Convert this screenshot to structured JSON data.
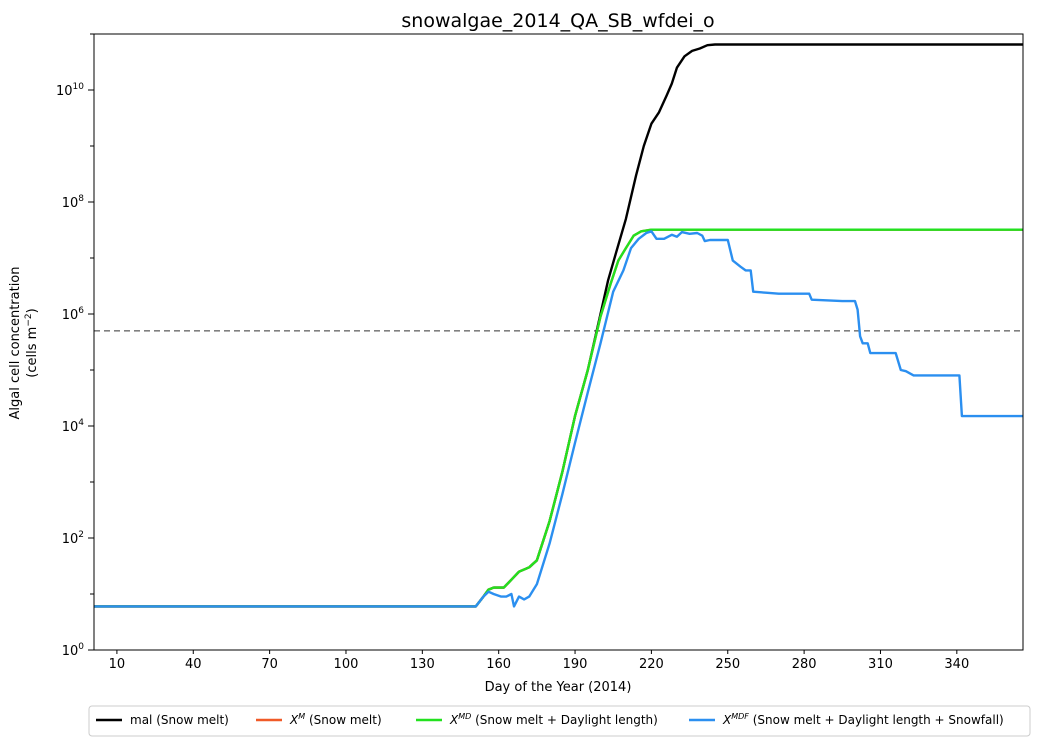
{
  "chart_data": {
    "type": "line",
    "title": "snowalgae_2014_QA_SB_wfdei_o",
    "xlabel": "Day of the Year (2014)",
    "ylabel_line1": "Algal cell concentration",
    "ylabel_line2_prefix": "(cells m",
    "ylabel_line2_sup": "−2",
    "ylabel_line2_suffix": ")",
    "yscale": "log",
    "xlim": [
      1,
      366
    ],
    "ylim": [
      1,
      100000000000
    ],
    "xticks": [
      10,
      40,
      70,
      100,
      130,
      160,
      190,
      220,
      250,
      280,
      310,
      340
    ],
    "yticks": [
      {
        "value": 1,
        "base": "10",
        "exp": "0"
      },
      {
        "value": 100,
        "base": "10",
        "exp": "2"
      },
      {
        "value": 10000,
        "base": "10",
        "exp": "4"
      },
      {
        "value": 1000000,
        "base": "10",
        "exp": "6"
      },
      {
        "value": 100000000,
        "base": "10",
        "exp": "8"
      },
      {
        "value": 10000000000,
        "base": "10",
        "exp": "10"
      }
    ],
    "grid": false,
    "legend_position": "bottom-outside",
    "threshold": {
      "y": 500000,
      "color": "#808080",
      "style": "dashed"
    },
    "series": [
      {
        "name": "mal (Snow melt)",
        "color": "#000000",
        "points": [
          [
            1,
            6
          ],
          [
            151,
            6
          ],
          [
            154,
            9
          ],
          [
            156,
            12
          ],
          [
            158,
            13
          ],
          [
            162,
            13
          ],
          [
            165,
            18
          ],
          [
            168,
            25
          ],
          [
            172,
            30
          ],
          [
            175,
            40
          ],
          [
            180,
            200
          ],
          [
            185,
            1500
          ],
          [
            190,
            15000
          ],
          [
            195,
            100000
          ],
          [
            200,
            1000000
          ],
          [
            203,
            4000000
          ],
          [
            206,
            12000000
          ],
          [
            210,
            50000000
          ],
          [
            214,
            300000000
          ],
          [
            217,
            1000000000
          ],
          [
            220,
            2500000000
          ],
          [
            223,
            4000000000
          ],
          [
            226,
            8000000000
          ],
          [
            228,
            13000000000
          ],
          [
            230,
            25000000000
          ],
          [
            233,
            40000000000
          ],
          [
            236,
            50000000000
          ],
          [
            239,
            55000000000
          ],
          [
            242,
            63000000000
          ],
          [
            245,
            65000000000
          ],
          [
            366,
            65000000000
          ]
        ]
      },
      {
        "name": "X^M (Snow melt)",
        "legend_main": "X",
        "legend_sup": "M",
        "legend_suffix": " (Snow melt)",
        "color": "#f05a28",
        "points": [
          [
            1,
            6
          ],
          [
            151,
            6
          ],
          [
            154,
            9
          ],
          [
            156,
            12
          ],
          [
            158,
            13
          ],
          [
            162,
            13
          ],
          [
            165,
            18
          ],
          [
            168,
            25
          ],
          [
            172,
            30
          ],
          [
            175,
            40
          ],
          [
            180,
            200
          ],
          [
            185,
            1500
          ],
          [
            190,
            15000
          ],
          [
            195,
            100000
          ],
          [
            200,
            900000
          ],
          [
            204,
            3500000
          ],
          [
            207,
            9000000
          ],
          [
            210,
            15000000
          ],
          [
            213,
            25000000
          ],
          [
            216,
            30000000
          ],
          [
            220,
            32000000
          ],
          [
            366,
            32000000
          ]
        ]
      },
      {
        "name": "X^MD (Snow melt + Daylight length)",
        "legend_main": "X",
        "legend_sup": "MD",
        "legend_suffix": " (Snow melt + Daylight length)",
        "color": "#22e11f",
        "points": [
          [
            1,
            6
          ],
          [
            151,
            6
          ],
          [
            154,
            9
          ],
          [
            156,
            12
          ],
          [
            158,
            13
          ],
          [
            162,
            13
          ],
          [
            165,
            18
          ],
          [
            168,
            25
          ],
          [
            172,
            30
          ],
          [
            175,
            40
          ],
          [
            180,
            200
          ],
          [
            185,
            1500
          ],
          [
            190,
            15000
          ],
          [
            195,
            100000
          ],
          [
            200,
            900000
          ],
          [
            204,
            3500000
          ],
          [
            207,
            9000000
          ],
          [
            210,
            15000000
          ],
          [
            213,
            25000000
          ],
          [
            216,
            30000000
          ],
          [
            220,
            32000000
          ],
          [
            366,
            32000000
          ]
        ]
      },
      {
        "name": "X^MDF (Snow melt + Daylight length + Snowfall)",
        "legend_main": "X",
        "legend_sup": "MDF",
        "legend_suffix": " (Snow melt + Daylight length + Snowfall)",
        "color": "#2b8ff0",
        "points": [
          [
            1,
            6
          ],
          [
            151,
            6
          ],
          [
            154,
            9
          ],
          [
            156,
            11
          ],
          [
            158,
            10
          ],
          [
            161,
            9
          ],
          [
            163,
            9
          ],
          [
            165,
            10
          ],
          [
            166,
            6
          ],
          [
            168,
            9
          ],
          [
            170,
            8
          ],
          [
            172,
            9
          ],
          [
            175,
            15
          ],
          [
            180,
            80
          ],
          [
            185,
            600
          ],
          [
            190,
            5000
          ],
          [
            195,
            40000
          ],
          [
            200,
            300000
          ],
          [
            205,
            2500000
          ],
          [
            209,
            6000000
          ],
          [
            212,
            15000000
          ],
          [
            215,
            22000000
          ],
          [
            218,
            28000000
          ],
          [
            220,
            30000000
          ],
          [
            222,
            22000000
          ],
          [
            225,
            22000000
          ],
          [
            228,
            26000000
          ],
          [
            230,
            24000000
          ],
          [
            232,
            29000000
          ],
          [
            235,
            27000000
          ],
          [
            238,
            28000000
          ],
          [
            240,
            25000000
          ],
          [
            241,
            20000000
          ],
          [
            243,
            21000000
          ],
          [
            250,
            21000000
          ],
          [
            252,
            9000000
          ],
          [
            255,
            7000000
          ],
          [
            257,
            6000000
          ],
          [
            259,
            6000000
          ],
          [
            260,
            2500000
          ],
          [
            265,
            2400000
          ],
          [
            270,
            2300000
          ],
          [
            282,
            2300000
          ],
          [
            283,
            1800000
          ],
          [
            295,
            1700000
          ],
          [
            300,
            1700000
          ],
          [
            301,
            1200000
          ],
          [
            302,
            400000
          ],
          [
            303,
            300000
          ],
          [
            305,
            300000
          ],
          [
            306,
            200000
          ],
          [
            316,
            200000
          ],
          [
            318,
            100000
          ],
          [
            320,
            95000
          ],
          [
            323,
            80000
          ],
          [
            330,
            80000
          ],
          [
            341,
            80000
          ],
          [
            342,
            15000
          ],
          [
            366,
            15000
          ]
        ]
      }
    ]
  }
}
